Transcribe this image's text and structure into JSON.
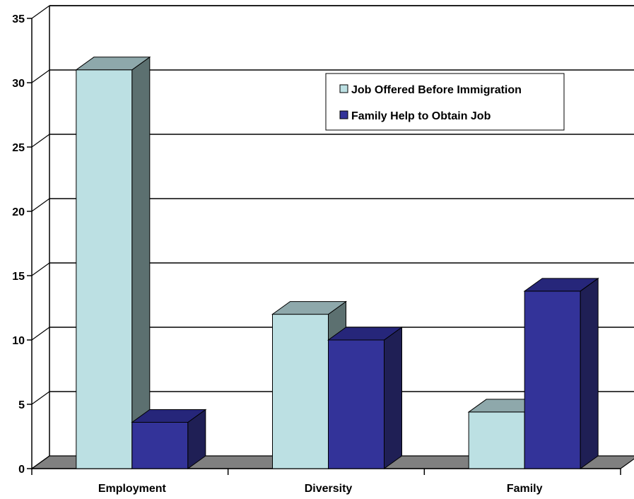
{
  "chart_data": {
    "type": "bar",
    "three_d": true,
    "categories": [
      "Employment",
      "Diversity",
      "Family"
    ],
    "series": [
      {
        "name": "Job Offered Before Immigration",
        "values": [
          31,
          12,
          4.4
        ],
        "color": "#BCE0E3",
        "side_color": "#5C7070",
        "top_color": "#8EA8AB"
      },
      {
        "name": "Family Help to Obtain Job",
        "values": [
          3.6,
          10,
          13.8
        ],
        "color": "#333399",
        "side_color": "#1F1F55",
        "top_color": "#26267A"
      }
    ],
    "ylim": [
      0,
      35
    ],
    "yticks": [
      0,
      5,
      10,
      15,
      20,
      25,
      30,
      35
    ],
    "grid": true,
    "legend": "top-right",
    "floor_color": "#808080"
  }
}
